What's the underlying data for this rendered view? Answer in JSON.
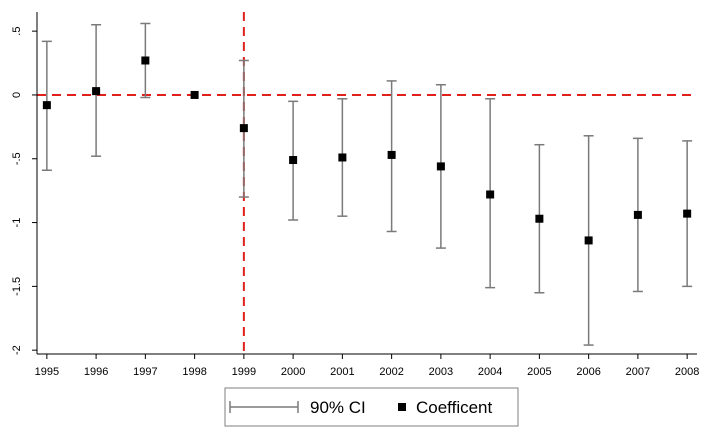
{
  "chart_data": {
    "type": "scatter",
    "title": "",
    "xlabel": "",
    "ylabel": "",
    "x": [
      1995,
      1996,
      1997,
      1998,
      1999,
      2000,
      2001,
      2002,
      2003,
      2004,
      2005,
      2006,
      2007,
      2008
    ],
    "x_tick_labels": [
      "1995",
      "1996",
      "1997",
      "1998",
      "1999",
      "2000",
      "2001",
      "2002",
      "2003",
      "2004",
      "2005",
      "2006",
      "2007",
      "2008"
    ],
    "y_ticks": [
      0.5,
      0,
      -0.5,
      -1,
      -1.5,
      -2
    ],
    "y_tick_labels": [
      ".5",
      "0",
      "-.5",
      "-1",
      "-1.5",
      "-2"
    ],
    "ylim": [
      -2.03,
      0.65
    ],
    "xlim": [
      1994.8,
      2008.2
    ],
    "series": [
      {
        "name": "Coefficent",
        "values": [
          -0.08,
          0.03,
          0.27,
          0.0,
          -0.26,
          -0.51,
          -0.49,
          -0.47,
          -0.56,
          -0.78,
          -0.97,
          -1.14,
          -0.94,
          -0.93
        ]
      },
      {
        "name": "90% CI",
        "lower": [
          -0.59,
          -0.48,
          -0.02,
          0.0,
          -0.8,
          -0.98,
          -0.95,
          -1.07,
          -1.2,
          -1.51,
          -1.55,
          -1.96,
          -1.54,
          -1.5
        ],
        "upper": [
          0.42,
          0.55,
          0.56,
          0.0,
          0.27,
          -0.05,
          -0.03,
          0.11,
          0.08,
          -0.03,
          -0.39,
          -0.32,
          -0.34,
          -0.36
        ]
      }
    ],
    "reference_lines": {
      "horizontal_y": 0,
      "vertical_x": 1999
    },
    "grid": false,
    "legend_placement": "bottom",
    "colors": {
      "ci": "#7a7a7a",
      "coefficient": "#000000",
      "reference": "#e0201b",
      "axis": "#000000"
    }
  },
  "legend": {
    "ci_label": "90% CI",
    "coef_label": "Coefficent"
  }
}
